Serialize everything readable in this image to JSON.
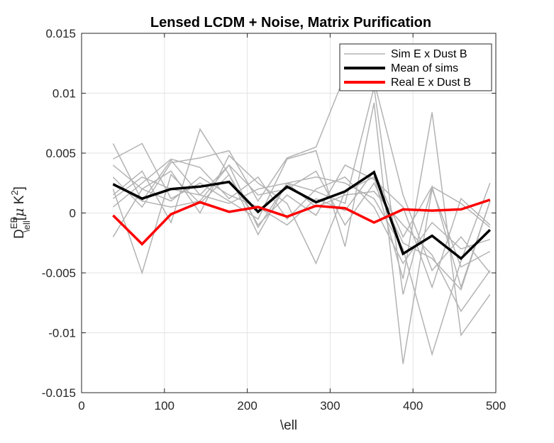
{
  "chart_data": {
    "type": "line",
    "title": "Lensed LCDM + Noise, Matrix Purification",
    "xlabel": "\\ell",
    "ylabel": {
      "base": "D",
      "sup": "EB",
      "sub": "\\ell",
      "unit_prefix": "[",
      "mu": "μ",
      "unit_k": " K",
      "unit_exp": "2",
      "unit_suffix": "]"
    },
    "xlim": [
      0,
      500
    ],
    "ylim": [
      -0.015,
      0.015
    ],
    "xticks": [
      0,
      100,
      200,
      300,
      400,
      500
    ],
    "xtick_labels": [
      "0",
      "100",
      "200",
      "300",
      "400",
      "500"
    ],
    "yticks": [
      0.015,
      0.01,
      0.005,
      0,
      -0.005,
      -0.01,
      -0.015
    ],
    "ytick_labels": [
      "0.015",
      "0.01",
      "0.005",
      "0",
      "-0.005",
      "-0.01",
      "-0.015"
    ],
    "grid": true,
    "legend_position": "top-right",
    "x": [
      38,
      73,
      108,
      143,
      178,
      213,
      248,
      283,
      318,
      353,
      388,
      423,
      458,
      493
    ],
    "series": [
      {
        "name": "Sim E x Dust B",
        "color": "#b3b3b3",
        "width": 1.5,
        "values": [
          0.0058,
          0.001,
          0.0044,
          0.0015,
          0.004,
          -0.0012,
          0.0025,
          0.0018,
          0.0008,
          0.0105,
          -0.0068,
          0.0022,
          -0.0062,
          0.001
        ]
      },
      {
        "name": "",
        "color": "#b3b3b3",
        "width": 1.5,
        "values": [
          0.0045,
          0.0058,
          0.0012,
          0.0025,
          0.001,
          -0.0005,
          0.0045,
          0.0052,
          -0.0028,
          0.0092,
          -0.0126,
          0.002,
          -0.0045,
          -0.0032
        ]
      },
      {
        "name": "",
        "color": "#b3b3b3",
        "width": 1.5,
        "values": [
          0.0015,
          0.0035,
          -0.0008,
          0.007,
          0.0032,
          -0.0018,
          0.0025,
          0.003,
          0.0025,
          0.0012,
          -0.003,
          -0.0118,
          -0.004,
          0.0025
        ]
      },
      {
        "name": "",
        "color": "#b3b3b3",
        "width": 1.5,
        "values": [
          0.003,
          0.0005,
          0.0042,
          0.0046,
          0.0052,
          0.001,
          0.0046,
          0.0055,
          0.0115,
          0.011,
          0.0015,
          -0.0048,
          -0.002,
          -0.005
        ]
      },
      {
        "name": "",
        "color": "#b3b3b3",
        "width": 1.5,
        "values": [
          -0.002,
          0.002,
          0.0035,
          0.0,
          0.0048,
          0.0025,
          0.0008,
          -0.0042,
          0.0018,
          0.003,
          -0.0055,
          0.0084,
          -0.0102,
          -0.0068
        ]
      },
      {
        "name": "",
        "color": "#b3b3b3",
        "width": 1.5,
        "values": [
          0.0005,
          0.0025,
          0.0045,
          0.0038,
          0.0012,
          0.003,
          -0.0005,
          0.002,
          0.003,
          0.0005,
          -0.0042,
          -0.0008,
          -0.003,
          -0.0022
        ]
      },
      {
        "name": "",
        "color": "#b3b3b3",
        "width": 1.5,
        "values": [
          0.002,
          -0.005,
          0.0032,
          0.0008,
          0.0032,
          -0.001,
          0.0015,
          -0.0002,
          0.004,
          0.0028,
          0.0005,
          -0.0062,
          0.0012,
          -0.001
        ]
      },
      {
        "name": "",
        "color": "#b3b3b3",
        "width": 1.5,
        "values": [
          0.0025,
          0.001,
          0.0005,
          0.001,
          0.004,
          0.0015,
          0.002,
          0.0035,
          -0.001,
          0.0025,
          -0.0025,
          -0.0038,
          -0.0064,
          0.001
        ]
      },
      {
        "name": "",
        "color": "#b3b3b3",
        "width": 1.5,
        "values": [
          0.004,
          0.002,
          0.001,
          0.003,
          0.0015,
          0.0005,
          -0.001,
          0.0012,
          0.0002,
          0.0035,
          -0.002,
          0.0022,
          0.0008,
          -0.0012
        ]
      },
      {
        "name": "",
        "color": "#b3b3b3",
        "width": 1.5,
        "values": [
          0.0012,
          0.003,
          0.002,
          0.0015,
          0.0008,
          0.002,
          0.0025,
          0.0005,
          0.0015,
          0.0018,
          -0.001,
          -0.0035,
          -0.0082,
          -0.0048
        ]
      },
      {
        "name": "Mean of sims",
        "color": "#000000",
        "width": 3.5,
        "values": [
          0.0024,
          0.0012,
          0.002,
          0.0022,
          0.0026,
          0.0001,
          0.0022,
          0.0009,
          0.0018,
          0.0034,
          -0.0034,
          -0.0019,
          -0.0038,
          -0.0014
        ]
      },
      {
        "name": "Real E x Dust B",
        "color": "#ff0000",
        "width": 3.5,
        "values": [
          -0.0002,
          -0.0026,
          -0.0001,
          0.0009,
          0.0001,
          0.0005,
          -0.0003,
          0.0006,
          0.0004,
          -0.0008,
          0.0003,
          0.0002,
          0.0003,
          0.0011
        ]
      }
    ],
    "legend": [
      {
        "label": "Sim E x Dust B",
        "color": "#b3b3b3"
      },
      {
        "label": "Mean of sims",
        "color": "#000000"
      },
      {
        "label": "Real E x Dust B",
        "color": "#ff0000"
      }
    ]
  }
}
